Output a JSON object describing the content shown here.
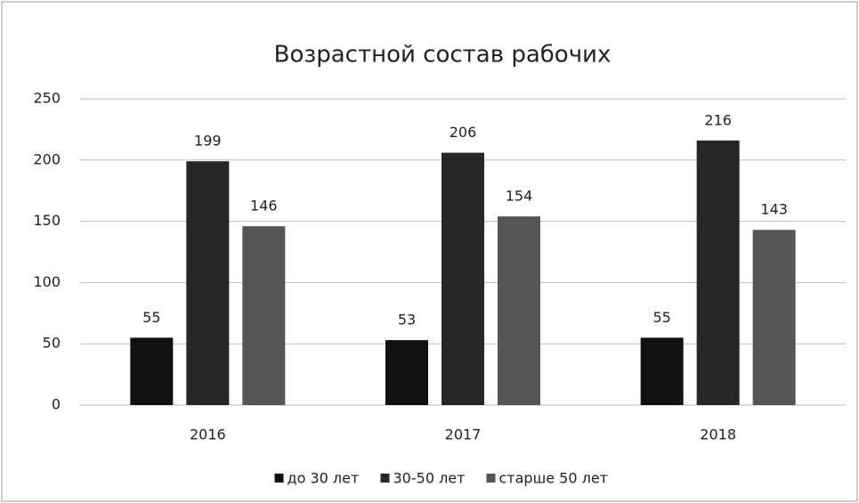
{
  "chart_data": {
    "type": "bar",
    "title": "Возрастной состав рабочих",
    "categories": [
      "2016",
      "2017",
      "2018"
    ],
    "series": [
      {
        "name": "до 30 лет",
        "color": "#111111",
        "values": [
          55,
          53,
          55
        ]
      },
      {
        "name": "30-50 лет",
        "color": "#262626",
        "values": [
          199,
          206,
          216
        ]
      },
      {
        "name": "старше 50 лет",
        "color": "#555555",
        "values": [
          146,
          154,
          143
        ]
      }
    ],
    "ylim": [
      0,
      250
    ],
    "yticks": [
      0,
      50,
      100,
      150,
      200,
      250
    ],
    "grid": true,
    "legend": "bottom"
  }
}
